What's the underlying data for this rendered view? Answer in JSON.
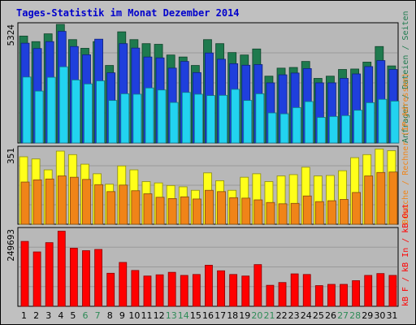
{
  "window": {
    "title": "Tages-Statistik im Monat Dezember 2014"
  },
  "colors": {
    "background": "#c0c0c0",
    "plot_bg": "#b8b8b8",
    "title": "#0000cc",
    "weekday": "#000000",
    "weekend": "#2e8b57",
    "hits": "#1e7a4e",
    "files": "#1f3fdc",
    "pages": "#22d3f0",
    "visits": "#ffff1a",
    "sites": "#f08418",
    "kb_f": "#ff0000",
    "kb_in": "#2060ff",
    "kb_out": "#1e9a3a"
  },
  "chart_data": {
    "type": "bar",
    "title": "Tages-Statistik im Monat Dezember 2014",
    "categories": [
      "1",
      "2",
      "3",
      "4",
      "5",
      "6",
      "7",
      "8",
      "9",
      "10",
      "11",
      "12",
      "13",
      "14",
      "15",
      "16",
      "17",
      "18",
      "19",
      "20",
      "21",
      "22",
      "23",
      "24",
      "25",
      "26",
      "27",
      "28",
      "29",
      "30",
      "31"
    ],
    "weekend_days": [
      "6",
      "7",
      "13",
      "14",
      "20",
      "21",
      "27",
      "28"
    ],
    "grid": true,
    "panels": [
      {
        "id": "requests",
        "ymax_label": "5324",
        "ylim": [
          0,
          5324
        ],
        "right_label": "Anfragen / Dateien / Seiten",
        "series": [
          {
            "name": "Anfragen",
            "color_key": "hits",
            "values": [
              4800,
              4550,
              4900,
              5324,
              4640,
              4250,
              4550,
              3480,
              4990,
              4640,
              4460,
              4430,
              3950,
              3860,
              3480,
              4640,
              4460,
              4060,
              3950,
              4220,
              3000,
              3360,
              3390,
              3660,
              2900,
              3000,
              3300,
              3320,
              3630,
              4330,
              3460
            ]
          },
          {
            "name": "Dateien",
            "color_key": "files",
            "values": [
              4480,
              4240,
              4550,
              5010,
              4330,
              3960,
              4660,
              3150,
              4460,
              4260,
              3860,
              3820,
              3360,
              3660,
              3160,
              4040,
              3760,
              3560,
              3490,
              3520,
              2700,
              3060,
              3140,
              3340,
              2700,
              2700,
              2900,
              3100,
              3430,
              3700,
              3300
            ]
          },
          {
            "name": "Seiten",
            "color_key": "pages",
            "values": [
              2960,
              2330,
              2950,
              3420,
              2830,
              2650,
              2790,
              1910,
              2210,
              2190,
              2470,
              2380,
              1820,
              2270,
              2190,
              2130,
              2140,
              2410,
              1910,
              2210,
              1350,
              1310,
              1590,
              1860,
              1150,
              1190,
              1230,
              1470,
              1810,
              1960,
              1880
            ]
          }
        ]
      },
      {
        "id": "visitors",
        "ymax_label": "351",
        "ylim": [
          0,
          351
        ],
        "right_label": "Besuche / Rechner (IP-Adressen)",
        "series": [
          {
            "name": "Besuche",
            "color_key": "visits",
            "values": [
              310,
              300,
              250,
              336,
              320,
              276,
              232,
              184,
              268,
              250,
              196,
              190,
              178,
              172,
              156,
              236,
              200,
              156,
              216,
              232,
              196,
              222,
              228,
              262,
              222,
              224,
              246,
              306,
              320,
              346,
              338
            ]
          },
          {
            "name": "Rechner (IP-Adressen)",
            "color_key": "sites",
            "values": [
              194,
              204,
              208,
              222,
              216,
              206,
              182,
              150,
              180,
              154,
              140,
              124,
              118,
              126,
              116,
              156,
              150,
              122,
              120,
              112,
              100,
              94,
              96,
              130,
              104,
              108,
              114,
              146,
              222,
              238,
              240
            ]
          }
        ]
      },
      {
        "id": "traffic",
        "ymax_label": "249693",
        "ylim": [
          0,
          249693
        ],
        "right_label": "kB F / kB In / kB Out",
        "series": [
          {
            "name": "kB F",
            "color_key": "kb_f",
            "values": [
              210000,
              176000,
              206000,
              243000,
              188000,
              180000,
              184000,
              107000,
              142000,
              116000,
              98000,
              102000,
              110000,
              100000,
              103000,
              133000,
              115000,
              103000,
              98000,
              135000,
              68000,
              77000,
              105000,
              103000,
              67000,
              71000,
              71000,
              83000,
              100000,
              106000,
              100000
            ]
          }
        ]
      }
    ]
  }
}
